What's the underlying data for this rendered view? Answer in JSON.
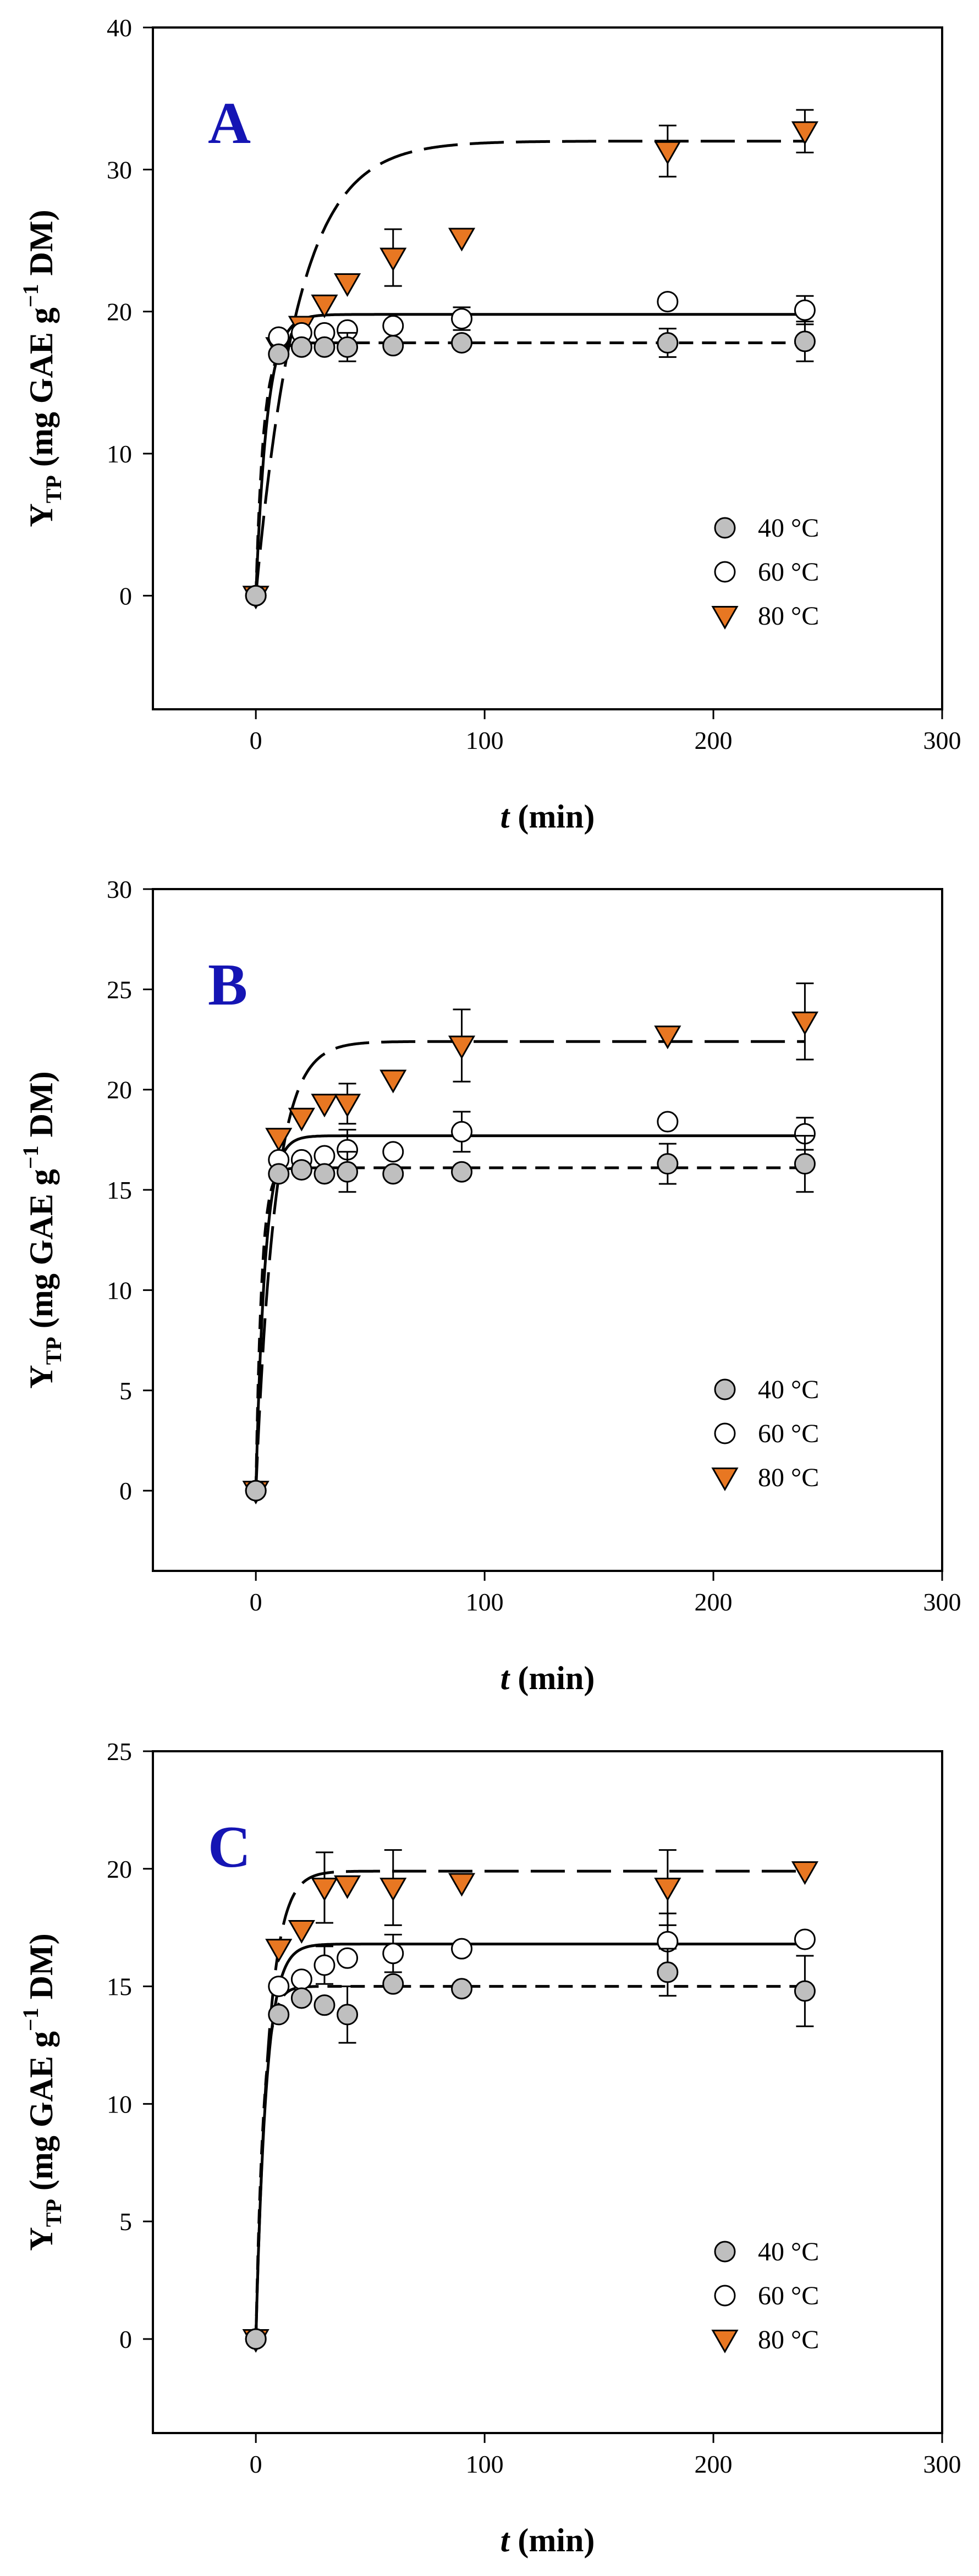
{
  "colors": {
    "s40": "#bfbfbf",
    "s60": "#ffffff",
    "s80": "#e87722",
    "panel_letter": "#1515b4"
  },
  "chart_data": [
    {
      "type": "scatter",
      "panel_label": "A",
      "xlabel": {
        "t": "t",
        "rest": " (min)"
      },
      "ylabel": {
        "Y": "Y",
        "sub": "TP",
        "main": " (mg GAE g",
        "sup": "−1",
        "end": " DM)"
      },
      "xlim": [
        -45,
        300
      ],
      "xticks": [
        0,
        100,
        200,
        300
      ],
      "ylim": [
        -8,
        40
      ],
      "yticks": [
        0,
        10,
        20,
        30,
        40
      ],
      "legend": "bottom-right",
      "series": [
        {
          "name": "40 °C",
          "temp": "40",
          "unit": " °C",
          "marker": "circle",
          "fill": "#bfbfbf",
          "line": "dash-short",
          "x": [
            0,
            10,
            20,
            30,
            40,
            60,
            90,
            180,
            240
          ],
          "y": [
            0,
            17.0,
            17.5,
            17.5,
            17.5,
            17.6,
            17.8,
            17.8,
            17.9
          ],
          "err": [
            0,
            0,
            0,
            0,
            1.0,
            0,
            0,
            1.0,
            1.4
          ],
          "fit": {
            "ymax": 17.8,
            "k": 0.3
          }
        },
        {
          "name": "60 °C",
          "temp": "60",
          "unit": " °C",
          "marker": "circle",
          "fill": "#ffffff",
          "line": "solid",
          "x": [
            0,
            10,
            20,
            30,
            40,
            60,
            90,
            180,
            240
          ],
          "y": [
            0,
            18.2,
            18.5,
            18.5,
            18.7,
            19.0,
            19.5,
            20.7,
            20.1
          ],
          "err": [
            0,
            0,
            0,
            0,
            0,
            0,
            0.8,
            0,
            1.0
          ],
          "fit": {
            "ymax": 19.8,
            "k": 0.2
          }
        },
        {
          "name": "80 °C",
          "temp": "80",
          "unit": " °C",
          "marker": "triangle",
          "fill": "#e87722",
          "line": "dash-long",
          "x": [
            0,
            10,
            20,
            30,
            40,
            60,
            90,
            180,
            240
          ],
          "y": [
            0,
            17.5,
            19.0,
            20.5,
            22.0,
            23.8,
            25.2,
            31.3,
            32.7
          ],
          "err": [
            0,
            0,
            0,
            0,
            0,
            2.0,
            0,
            1.8,
            1.5
          ],
          "fit": {
            "ymax": 32.0,
            "k": 0.055
          }
        }
      ]
    },
    {
      "type": "scatter",
      "panel_label": "B",
      "xlabel": {
        "t": "t",
        "rest": " (min)"
      },
      "ylabel": {
        "Y": "Y",
        "sub": "TP",
        "main": " (mg GAE g",
        "sup": "−1",
        "end": " DM)"
      },
      "xlim": [
        -45,
        300
      ],
      "xticks": [
        0,
        100,
        200,
        300
      ],
      "ylim": [
        -4,
        30
      ],
      "yticks": [
        0,
        5,
        10,
        15,
        20,
        25,
        30
      ],
      "legend": "bottom-right",
      "series": [
        {
          "name": "40 °C",
          "temp": "40",
          "unit": " °C",
          "marker": "circle",
          "fill": "#bfbfbf",
          "line": "dash-short",
          "x": [
            0,
            10,
            20,
            30,
            40,
            60,
            90,
            180,
            240
          ],
          "y": [
            0,
            15.8,
            16.0,
            15.8,
            15.9,
            15.8,
            15.9,
            16.3,
            16.3
          ],
          "err": [
            0,
            0,
            0,
            0,
            1.0,
            0,
            0,
            1.0,
            1.4
          ],
          "fit": {
            "ymax": 16.1,
            "k": 0.4
          }
        },
        {
          "name": "60 °C",
          "temp": "60",
          "unit": " °C",
          "marker": "circle",
          "fill": "#ffffff",
          "line": "solid",
          "x": [
            0,
            10,
            20,
            30,
            40,
            60,
            90,
            180,
            240
          ],
          "y": [
            0,
            16.5,
            16.5,
            16.7,
            17.0,
            16.9,
            17.9,
            18.4,
            17.8
          ],
          "err": [
            0,
            0,
            0,
            0,
            1.0,
            0,
            1.0,
            0,
            0.8
          ],
          "fit": {
            "ymax": 17.7,
            "k": 0.25
          }
        },
        {
          "name": "80 °C",
          "temp": "80",
          "unit": " °C",
          "marker": "triangle",
          "fill": "#e87722",
          "line": "dash-long",
          "x": [
            0,
            10,
            20,
            30,
            40,
            60,
            90,
            180,
            240
          ],
          "y": [
            0,
            17.6,
            18.6,
            19.3,
            19.3,
            20.5,
            22.2,
            22.7,
            23.4
          ],
          "err": [
            0,
            0,
            0,
            0,
            1.0,
            0,
            1.8,
            0,
            1.9
          ],
          "fit": {
            "ymax": 22.4,
            "k": 0.12
          }
        }
      ]
    },
    {
      "type": "scatter",
      "panel_label": "C",
      "xlabel": {
        "t": "t",
        "rest": " (min)"
      },
      "ylabel": {
        "Y": "Y",
        "sub": "TP",
        "main": " (mg GAE g",
        "sup": "−1",
        "end": " DM)"
      },
      "xlim": [
        -45,
        300
      ],
      "xticks": [
        0,
        100,
        200,
        300
      ],
      "ylim": [
        -4,
        25
      ],
      "yticks": [
        0,
        5,
        10,
        15,
        20,
        25
      ],
      "legend": "bottom-right",
      "series": [
        {
          "name": "40 °C",
          "temp": "40",
          "unit": " °C",
          "marker": "circle",
          "fill": "#bfbfbf",
          "line": "dash-short",
          "x": [
            0,
            10,
            20,
            30,
            40,
            60,
            90,
            180,
            240
          ],
          "y": [
            0,
            13.8,
            14.5,
            14.2,
            13.8,
            15.1,
            14.9,
            15.6,
            14.8
          ],
          "err": [
            0,
            0,
            0,
            0,
            1.2,
            0,
            0,
            1.0,
            1.5
          ],
          "fit": {
            "ymax": 15.0,
            "k": 0.3
          }
        },
        {
          "name": "60 °C",
          "temp": "60",
          "unit": " °C",
          "marker": "circle",
          "fill": "#ffffff",
          "line": "solid",
          "x": [
            0,
            10,
            20,
            30,
            40,
            60,
            90,
            180,
            240
          ],
          "y": [
            0,
            15.0,
            15.3,
            15.9,
            16.2,
            16.4,
            16.6,
            16.9,
            17.0
          ],
          "err": [
            0,
            0,
            0,
            0.8,
            0,
            0.8,
            0,
            1.2,
            0
          ],
          "fit": {
            "ymax": 16.8,
            "k": 0.22
          }
        },
        {
          "name": "80 °C",
          "temp": "80",
          "unit": " °C",
          "marker": "triangle",
          "fill": "#e87722",
          "line": "dash-long",
          "x": [
            0,
            10,
            20,
            30,
            40,
            60,
            90,
            180,
            240
          ],
          "y": [
            0,
            16.6,
            17.4,
            19.2,
            19.3,
            19.2,
            19.4,
            19.2,
            19.9
          ],
          "err": [
            0,
            0,
            0,
            1.5,
            0,
            1.6,
            0,
            1.6,
            0
          ],
          "fit": {
            "ymax": 19.9,
            "k": 0.18
          }
        }
      ]
    }
  ]
}
